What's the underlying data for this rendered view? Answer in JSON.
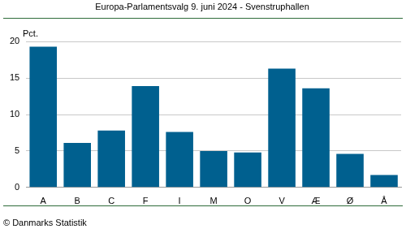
{
  "chart_data": {
    "type": "bar",
    "title": "Europa-Parlamentsvalg 9. juni 2024 - Svenstruphallen",
    "ylabel": "Pct.",
    "source": "© Danmarks Statistik",
    "categories": [
      "A",
      "B",
      "C",
      "F",
      "I",
      "M",
      "O",
      "V",
      "Æ",
      "Ø",
      "Å"
    ],
    "values": [
      19.3,
      6.1,
      7.8,
      13.9,
      7.6,
      5.0,
      4.8,
      16.3,
      13.6,
      4.6,
      1.7
    ],
    "color": "#00608f",
    "ylim": [
      0,
      20
    ],
    "yticks": [
      0,
      5,
      10,
      15,
      20
    ],
    "grid": true
  }
}
